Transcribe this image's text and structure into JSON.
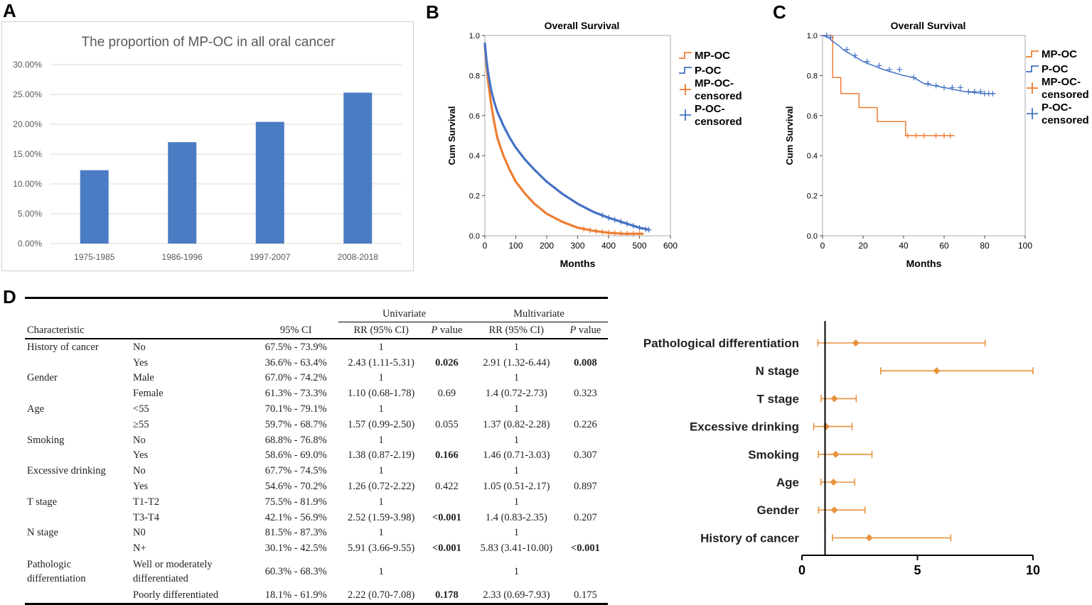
{
  "panel_labels": {
    "a": "A",
    "b": "B",
    "c": "C",
    "d": "D"
  },
  "colors": {
    "bar": "#4a7cc4",
    "mp_oc": "#ee7d31",
    "p_oc": "#4472c4",
    "forest": "#e8923b"
  },
  "chart_data": [
    {
      "panel": "A",
      "type": "bar",
      "title": "The proportion of MP-OC in all oral cancer",
      "categories": [
        "1975-1985",
        "1986-1996",
        "1997-2007",
        "2008-2018"
      ],
      "values": [
        12.3,
        17.0,
        20.4,
        25.3
      ],
      "ylim": [
        0,
        30
      ],
      "yticks": [
        0,
        5,
        10,
        15,
        20,
        25,
        30
      ],
      "ytick_labels": [
        "0.00%",
        "5.00%",
        "10.00%",
        "15.00%",
        "20.00%",
        "25.00%",
        "30.00%"
      ],
      "xlabel": "",
      "ylabel": ""
    },
    {
      "panel": "B",
      "type": "line",
      "title": "Overall Survival",
      "xlabel": "Months",
      "ylabel": "Cum Survival",
      "xlim": [
        0,
        600
      ],
      "ylim": [
        0,
        1.0
      ],
      "xticks": [
        0,
        100,
        200,
        300,
        400,
        500,
        600
      ],
      "xtick_labels": [
        "0",
        "100",
        "200",
        "300",
        "400",
        "500",
        "600"
      ],
      "yticks": [
        0,
        0.2,
        0.4,
        0.6,
        0.8,
        1.0
      ],
      "ytick_labels": [
        "0.0",
        "0.2",
        "0.4",
        "0.6",
        "0.8",
        "1.0"
      ],
      "series": [
        {
          "name": "MP-OC",
          "x": [
            0,
            5,
            10,
            20,
            30,
            40,
            60,
            80,
            100,
            130,
            160,
            200,
            250,
            300,
            350,
            400,
            450,
            510
          ],
          "y": [
            0.95,
            0.86,
            0.78,
            0.66,
            0.57,
            0.49,
            0.4,
            0.33,
            0.27,
            0.21,
            0.16,
            0.11,
            0.07,
            0.04,
            0.025,
            0.015,
            0.01,
            0.01
          ]
        },
        {
          "name": "P-OC",
          "x": [
            0,
            5,
            10,
            20,
            30,
            40,
            60,
            80,
            100,
            130,
            160,
            200,
            250,
            300,
            350,
            400,
            450,
            500,
            530
          ],
          "y": [
            0.96,
            0.88,
            0.82,
            0.73,
            0.67,
            0.62,
            0.55,
            0.49,
            0.44,
            0.38,
            0.33,
            0.27,
            0.21,
            0.16,
            0.12,
            0.09,
            0.065,
            0.04,
            0.03
          ]
        }
      ],
      "legend": [
        "MP-OC",
        "P-OC",
        "MP-OC-\ncensored",
        "P-OC-\ncensored"
      ]
    },
    {
      "panel": "C",
      "type": "line",
      "title": "Overall Survival",
      "xlabel": "Months",
      "ylabel": "Cum Survival",
      "xlim": [
        0,
        100
      ],
      "ylim": [
        0,
        1.0
      ],
      "xticks": [
        0,
        20,
        40,
        60,
        80,
        100
      ],
      "xtick_labels": [
        "0",
        "20",
        "40",
        "60",
        "80",
        "100"
      ],
      "yticks": [
        0,
        0.2,
        0.4,
        0.6,
        0.8,
        1.0
      ],
      "ytick_labels": [
        "0.0",
        "0.2",
        "0.4",
        "0.6",
        "0.8",
        "1.0"
      ],
      "series": [
        {
          "name": "MP-OC",
          "x": [
            0,
            5,
            5,
            9,
            9,
            18,
            18,
            27,
            27,
            41,
            41,
            65
          ],
          "y": [
            1.0,
            1.0,
            0.79,
            0.79,
            0.71,
            0.71,
            0.64,
            0.64,
            0.57,
            0.57,
            0.5,
            0.5
          ]
        },
        {
          "name": "P-OC",
          "x": [
            0,
            3,
            5,
            8,
            10,
            15,
            20,
            25,
            30,
            40,
            45,
            50,
            55,
            60,
            70,
            80,
            85
          ],
          "y": [
            1.0,
            0.99,
            0.97,
            0.95,
            0.93,
            0.9,
            0.87,
            0.85,
            0.83,
            0.8,
            0.79,
            0.76,
            0.75,
            0.74,
            0.72,
            0.71,
            0.71
          ]
        }
      ],
      "legend": [
        "MP-OC",
        "P-OC",
        "MP-OC-\ncensored",
        "P-OC-\ncensored"
      ]
    },
    {
      "panel": "D",
      "type": "scatter",
      "subtype": "forest",
      "categories": [
        "Pathological differentiation",
        "N stage",
        "T stage",
        "Excessive drinking",
        "Smoking",
        "Age",
        "Gender",
        "History of cancer"
      ],
      "estimates": [
        2.33,
        5.83,
        1.4,
        1.05,
        1.46,
        1.37,
        1.4,
        2.91
      ],
      "lower": [
        0.69,
        3.41,
        0.83,
        0.51,
        0.71,
        0.82,
        0.72,
        1.32
      ],
      "upper": [
        7.93,
        10.0,
        2.35,
        2.17,
        3.03,
        2.28,
        2.73,
        6.44
      ],
      "xlim": [
        0,
        10
      ],
      "xticks": [
        0,
        5,
        10
      ],
      "xtick_labels": [
        "0",
        "5",
        "10"
      ],
      "reference_line": 1
    }
  ],
  "table": {
    "group_univariate": "Univariate",
    "group_multivariate": "Multivariate",
    "headers": {
      "characteristic": "Characteristic",
      "ci": "95% CI",
      "rr_u": "RR (95% CI)",
      "p_u_ital": "P",
      "p_u_rest": " value",
      "rr_m": "RR (95% CI)",
      "p_m_ital": "P",
      "p_m_rest": " value"
    },
    "rows": [
      {
        "characteristic": "History of cancer",
        "level": "No",
        "ci": "67.5% - 73.9%",
        "rr_u": "1",
        "p_u": "",
        "rr_m": "1",
        "p_m": ""
      },
      {
        "characteristic": "",
        "level": "Yes",
        "ci": "36.6% - 63.4%",
        "rr_u": "2.43 (1.11-5.31)",
        "p_u": "0.026",
        "rr_m": "2.91 (1.32-6.44)",
        "p_m": "0.008"
      },
      {
        "characteristic": "Gender",
        "level": "Male",
        "ci": "67.0% - 74.2%",
        "rr_u": "1",
        "p_u": "",
        "rr_m": "1",
        "p_m": ""
      },
      {
        "characteristic": "",
        "level": "Female",
        "ci": "61.3% - 73.3%",
        "rr_u": "1.10 (0.68-1.78)",
        "p_u": "0.69",
        "rr_m": "1.4 (0.72-2.73)",
        "p_m": "0.323"
      },
      {
        "characteristic": "Age",
        "level": "<55",
        "ci": "70.1% - 79.1%",
        "rr_u": "1",
        "p_u": "",
        "rr_m": "1",
        "p_m": ""
      },
      {
        "characteristic": "",
        "level": "≥55",
        "ci": "59.7% - 68.7%",
        "rr_u": "1.57 (0.99-2.50)",
        "p_u": "0.055",
        "rr_m": "1.37 (0.82-2.28)",
        "p_m": "0.226"
      },
      {
        "characteristic": "Smoking",
        "level": "No",
        "ci": "68.8% - 76.8%",
        "rr_u": "1",
        "p_u": "",
        "rr_m": "1",
        "p_m": ""
      },
      {
        "characteristic": "",
        "level": "Yes",
        "ci": "58.6% - 69.0%",
        "rr_u": "1.38 (0.87-2.19)",
        "p_u": "0.166",
        "rr_m": "1.46 (0.71-3.03)",
        "p_m": "0.307"
      },
      {
        "characteristic": "Excessive drinking",
        "level": "No",
        "ci": "67.7% - 74.5%",
        "rr_u": "1",
        "p_u": "",
        "rr_m": "1",
        "p_m": ""
      },
      {
        "characteristic": "",
        "level": "Yes",
        "ci": "54.6% - 70.2%",
        "rr_u": "1.26 (0.72-2.22)",
        "p_u": "0.422",
        "rr_m": "1.05 (0.51-2.17)",
        "p_m": "0.897"
      },
      {
        "characteristic": "T stage",
        "level": "T1-T2",
        "ci": "75.5% - 81.9%",
        "rr_u": "1",
        "p_u": "",
        "rr_m": "1",
        "p_m": ""
      },
      {
        "characteristic": "",
        "level": "T3-T4",
        "ci": "42.1% - 56.9%",
        "rr_u": "2.52 (1.59-3.98)",
        "p_u": "<0.001",
        "rr_m": "1.4 (0.83-2.35)",
        "p_m": "0.207"
      },
      {
        "characteristic": "N stage",
        "level": "N0",
        "ci": "81.5% - 87.3%",
        "rr_u": "1",
        "p_u": "",
        "rr_m": "1",
        "p_m": ""
      },
      {
        "characteristic": "",
        "level": "N+",
        "ci": "30.1% - 42.5%",
        "rr_u": "5.91 (3.66-9.55)",
        "p_u": "<0.001",
        "rr_m": "5.83 (3.41-10.00)",
        "p_m": "<0.001"
      },
      {
        "characteristic": "Pathologic differentiation",
        "level": "Well or moderately differentiated",
        "ci": "60.3% - 68.3%",
        "rr_u": "1",
        "p_u": "",
        "rr_m": "1",
        "p_m": ""
      },
      {
        "characteristic": "",
        "level": "Poorly differentiated",
        "ci": "18.1% - 61.9%",
        "rr_u": "2.22 (0.70-7.08)",
        "p_u": "0.178",
        "rr_m": "2.33 (0.69-7.93)",
        "p_m": "0.175"
      }
    ],
    "bold_p_u": [
      1,
      7,
      11,
      13,
      15
    ],
    "bold_p_m": [
      1,
      13
    ]
  }
}
